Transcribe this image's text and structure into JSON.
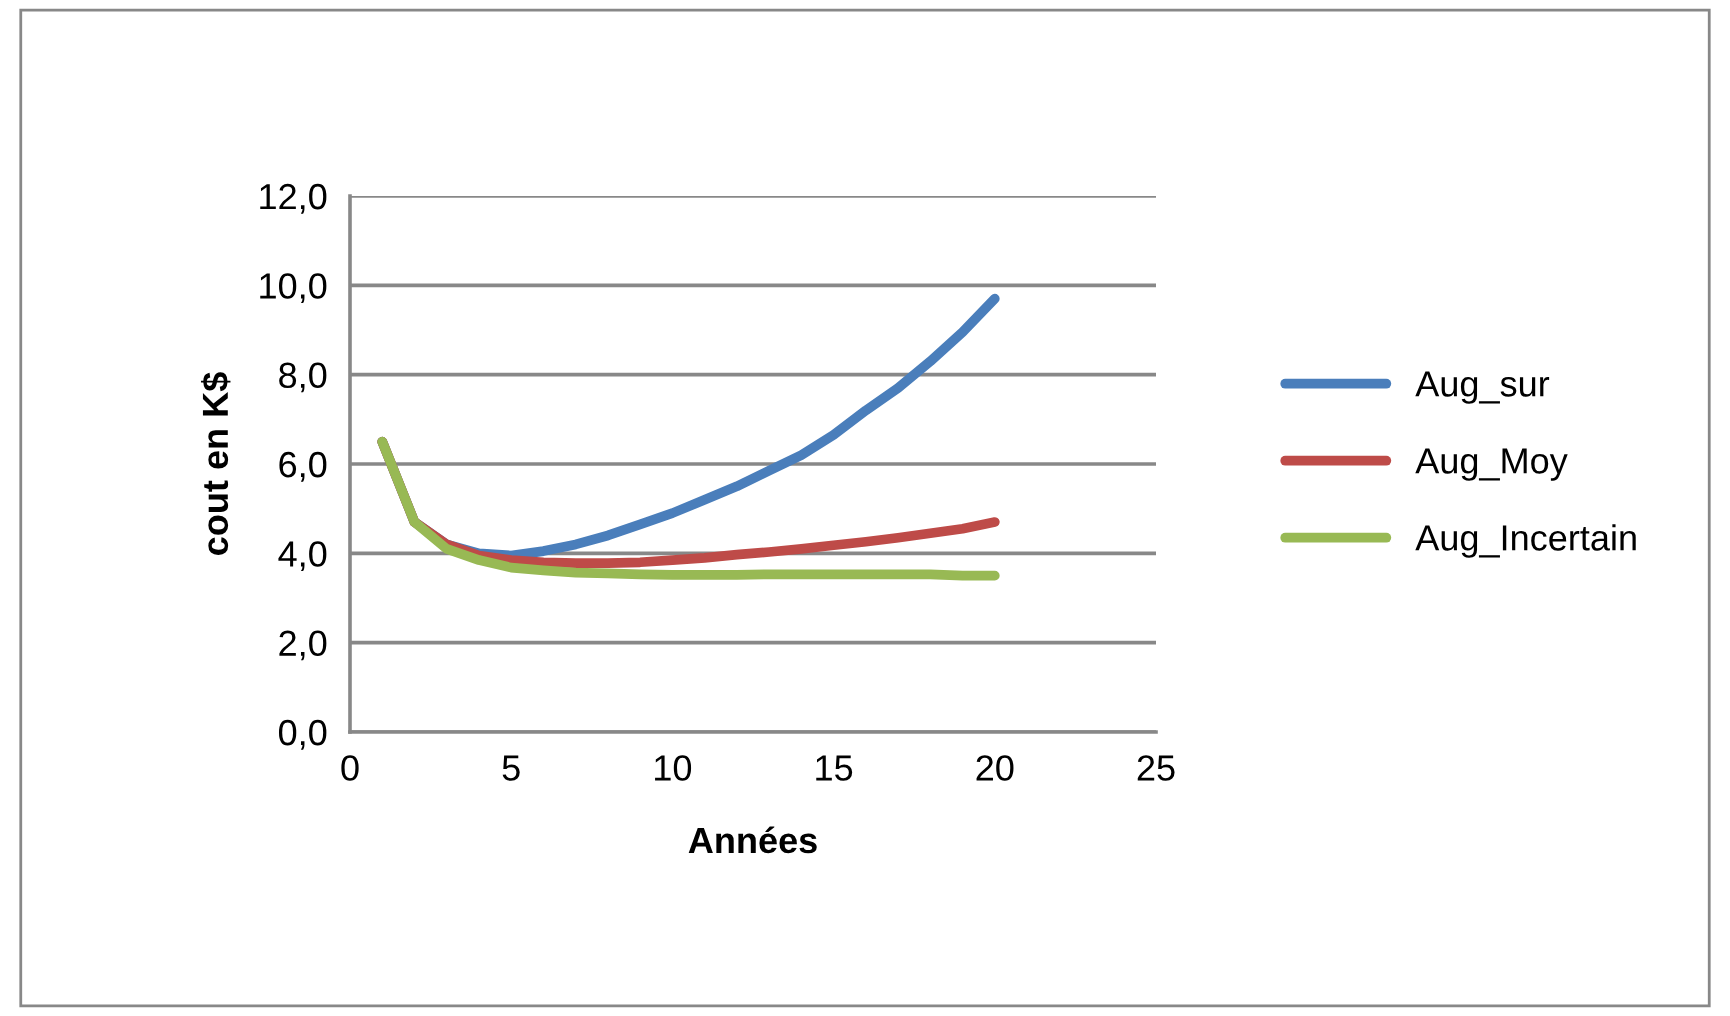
{
  "chart_data": {
    "type": "line",
    "xlabel": "Années",
    "ylabel": "cout en K$",
    "x": [
      1,
      2,
      3,
      4,
      5,
      6,
      7,
      8,
      9,
      10,
      11,
      12,
      13,
      14,
      15,
      16,
      17,
      18,
      19,
      20
    ],
    "series": [
      {
        "name": "Aug_sur",
        "color": "#4a7ebb",
        "values": [
          6.5,
          4.7,
          4.2,
          4.0,
          3.95,
          4.05,
          4.2,
          4.4,
          4.65,
          4.9,
          5.2,
          5.5,
          5.85,
          6.2,
          6.65,
          7.2,
          7.7,
          8.3,
          8.95,
          9.7
        ]
      },
      {
        "name": "Aug_Moy",
        "color": "#be4b48",
        "values": [
          6.5,
          4.7,
          4.2,
          3.95,
          3.85,
          3.8,
          3.78,
          3.78,
          3.8,
          3.85,
          3.9,
          3.97,
          4.03,
          4.1,
          4.18,
          4.26,
          4.35,
          4.45,
          4.55,
          4.7
        ]
      },
      {
        "name": "Aug_Incertain",
        "color": "#98b954",
        "values": [
          6.5,
          4.7,
          4.1,
          3.85,
          3.68,
          3.62,
          3.57,
          3.55,
          3.53,
          3.52,
          3.52,
          3.52,
          3.53,
          3.53,
          3.53,
          3.53,
          3.53,
          3.53,
          3.5,
          3.5
        ]
      }
    ],
    "xlim": [
      0,
      25
    ],
    "xticks": [
      0,
      5,
      10,
      15,
      20,
      25
    ],
    "ylim": [
      0,
      12
    ],
    "yticks": [
      {
        "value": 0,
        "label": "0,0"
      },
      {
        "value": 2,
        "label": "2,0"
      },
      {
        "value": 4,
        "label": "4,0"
      },
      {
        "value": 6,
        "label": "6,0"
      },
      {
        "value": 8,
        "label": "8,0"
      },
      {
        "value": 10,
        "label": "10,0"
      },
      {
        "value": 12,
        "label": "12,0"
      }
    ],
    "grid": "y",
    "legend": "right",
    "marker": "none",
    "line_style": "solid"
  }
}
